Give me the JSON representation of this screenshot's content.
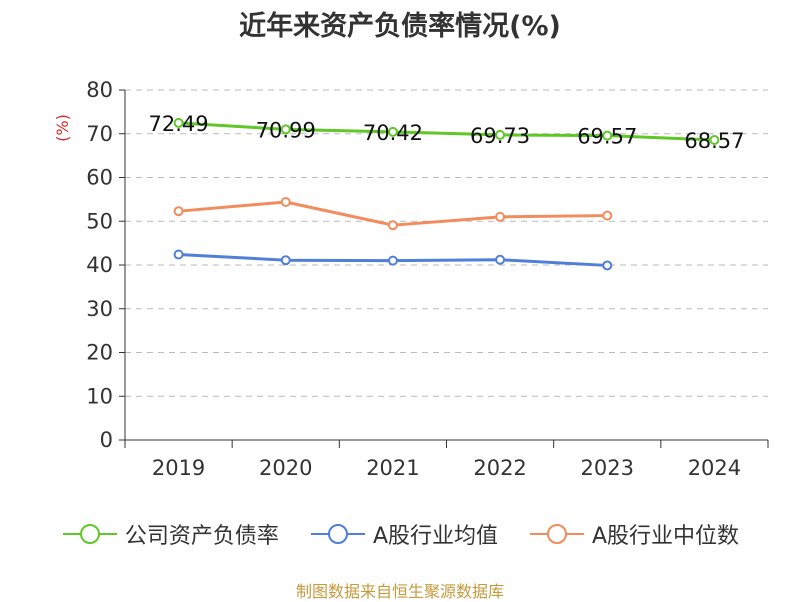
{
  "chart_data": {
    "type": "line",
    "title": "近年来资产负债率情况(%)",
    "ylabel": "(%)",
    "categories": [
      "2019",
      "2020",
      "2021",
      "2022",
      "2023",
      "2024"
    ],
    "ylim": [
      0,
      80
    ],
    "yticks": [
      0,
      10,
      20,
      30,
      40,
      50,
      60,
      70,
      80
    ],
    "grid": true,
    "legend_position": "bottom",
    "series": [
      {
        "name": "公司资产负债率",
        "color": "#5fc728",
        "values": [
          72.49,
          70.99,
          70.42,
          69.73,
          69.57,
          68.57
        ],
        "labels": [
          "72.49",
          "70.99",
          "70.42",
          "69.73",
          "69.57",
          "68.57"
        ]
      },
      {
        "name": "A股行业均值",
        "color": "#4f7fd8",
        "values": [
          42.4,
          41.1,
          41.0,
          41.2,
          39.9,
          null
        ],
        "labels": []
      },
      {
        "name": "A股行业中位数",
        "color": "#f28c5c",
        "values": [
          52.3,
          54.4,
          49.1,
          51.0,
          51.3,
          null
        ],
        "labels": []
      }
    ]
  },
  "source_note": "制图数据来自恒生聚源数据库"
}
